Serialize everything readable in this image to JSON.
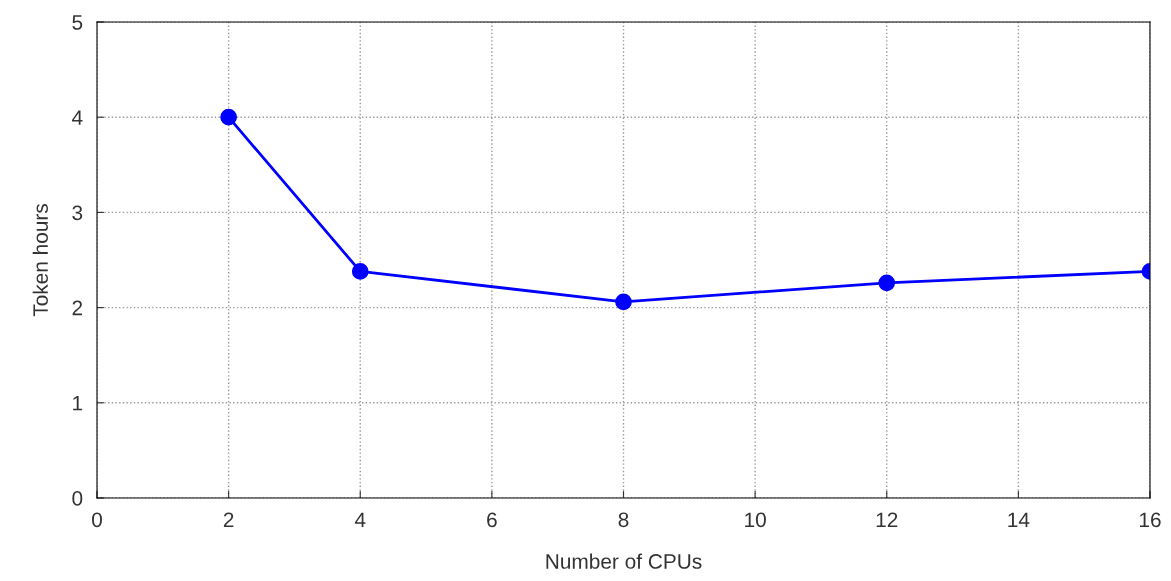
{
  "chart_data": {
    "type": "line",
    "xlabel": "Number of CPUs",
    "ylabel": "Token hours",
    "x": [
      2,
      4,
      8,
      12,
      16
    ],
    "series": [
      {
        "color": "#0000ff",
        "values": [
          4.0,
          2.38,
          2.06,
          2.26,
          2.38
        ]
      }
    ],
    "xlim": [
      0,
      16
    ],
    "xticks": [
      0,
      2,
      4,
      6,
      8,
      10,
      12,
      14,
      16
    ],
    "ylim": [
      0,
      5
    ],
    "yticks": [
      0,
      1,
      2,
      3,
      4,
      5
    ],
    "grid": true,
    "marker": "circle",
    "line_style": "solid",
    "legend": false
  }
}
